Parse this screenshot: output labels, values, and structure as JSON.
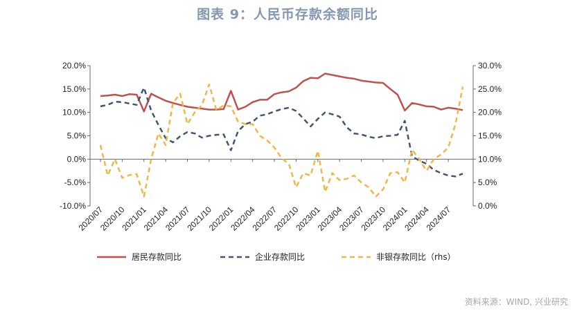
{
  "title": "图表 9：人民币存款余额同比",
  "source": "资料来源：WIND, 兴业研究",
  "colors": {
    "household": "#c0504d",
    "corporate": "#44546a",
    "nonbank": "#f0b64a"
  },
  "chart_data": {
    "type": "line",
    "x": [
      "2020/07",
      "2020/08",
      "2020/09",
      "2020/10",
      "2020/11",
      "2020/12",
      "2021/01",
      "2021/02",
      "2021/03",
      "2021/04",
      "2021/05",
      "2021/06",
      "2021/07",
      "2021/08",
      "2021/09",
      "2021/10",
      "2021/11",
      "2021/12",
      "2022/01",
      "2022/02",
      "2022/03",
      "2022/04",
      "2022/05",
      "2022/06",
      "2022/07",
      "2022/08",
      "2022/09",
      "2022/10",
      "2022/11",
      "2022/12",
      "2023/01",
      "2023/02",
      "2023/03",
      "2023/04",
      "2023/05",
      "2023/06",
      "2023/07",
      "2023/08",
      "2023/09",
      "2023/10",
      "2023/11",
      "2023/12",
      "2024/01",
      "2024/02",
      "2024/03",
      "2024/04",
      "2024/05",
      "2024/06",
      "2024/07",
      "2024/08",
      "2024/09"
    ],
    "xticks": [
      "2020/07",
      "2020/10",
      "2021/01",
      "2021/04",
      "2021/07",
      "2021/10",
      "2022/01",
      "2022/04",
      "2022/07",
      "2022/10",
      "2023/01",
      "2023/04",
      "2023/07",
      "2023/10",
      "2024/01",
      "2024/04",
      "2024/07"
    ],
    "left_axis": {
      "ylim": [
        -10,
        20
      ],
      "ticks": [
        "-10.0%",
        "-5.0%",
        "0.0%",
        "5.0%",
        "10.0%",
        "15.0%",
        "20.0%"
      ]
    },
    "right_axis": {
      "ylim": [
        0,
        30
      ],
      "ticks": [
        "0.0%",
        "5.0%",
        "10.0%",
        "15.0%",
        "20.0%",
        "25.0%",
        "30.0%"
      ]
    },
    "legend_position": "bottom",
    "series": [
      {
        "name": "居民存款同比",
        "axis": "left",
        "style": "solid",
        "color": "#c0504d",
        "values": [
          13.5,
          13.6,
          13.8,
          13.5,
          13.9,
          13.8,
          10.2,
          14.0,
          13.2,
          12.5,
          12.0,
          11.6,
          11.2,
          11.0,
          10.8,
          10.6,
          10.6,
          10.7,
          14.6,
          10.6,
          11.2,
          12.2,
          12.7,
          12.7,
          13.9,
          14.3,
          14.5,
          15.3,
          16.7,
          17.4,
          17.3,
          18.3,
          18.0,
          17.7,
          17.4,
          17.2,
          16.8,
          16.6,
          16.4,
          16.3,
          15.0,
          13.8,
          10.4,
          12.0,
          11.7,
          11.3,
          11.2,
          10.6,
          11.0,
          10.8,
          10.5
        ]
      },
      {
        "name": "企业存款同比",
        "axis": "left",
        "style": "dashed",
        "color": "#44546a",
        "values": [
          11.3,
          11.6,
          12.3,
          12.2,
          11.9,
          11.6,
          15.3,
          10.4,
          7.3,
          4.5,
          3.6,
          4.9,
          5.8,
          5.5,
          4.6,
          5.0,
          5.2,
          5.3,
          1.9,
          6.0,
          7.5,
          8.0,
          9.3,
          9.6,
          10.2,
          10.7,
          11.0,
          10.3,
          8.7,
          7.0,
          8.6,
          10.0,
          9.6,
          9.1,
          6.8,
          5.5,
          5.3,
          4.8,
          4.5,
          4.9,
          5.0,
          5.2,
          8.2,
          0.6,
          -0.3,
          -1.0,
          -2.3,
          -3.0,
          -3.5,
          -3.7,
          -3.1
        ]
      },
      {
        "name": "非银存款同比（rhs）",
        "axis": "right",
        "style": "dashed",
        "color": "#f0b64a",
        "values": [
          13.0,
          6.5,
          10.0,
          6.0,
          6.6,
          6.8,
          2.0,
          10.0,
          15.5,
          13.0,
          22.0,
          24.0,
          17.5,
          20.0,
          21.5,
          26.0,
          20.5,
          21.5,
          21.3,
          18.0,
          17.5,
          17.5,
          15.0,
          14.0,
          12.5,
          10.2,
          9.0,
          4.0,
          7.0,
          6.5,
          11.8,
          3.0,
          7.0,
          5.5,
          5.8,
          6.5,
          5.0,
          4.0,
          2.0,
          3.5,
          7.0,
          7.2,
          5.0,
          12.0,
          10.0,
          7.5,
          10.0,
          11.0,
          12.5,
          17.5,
          25.5
        ]
      }
    ]
  }
}
